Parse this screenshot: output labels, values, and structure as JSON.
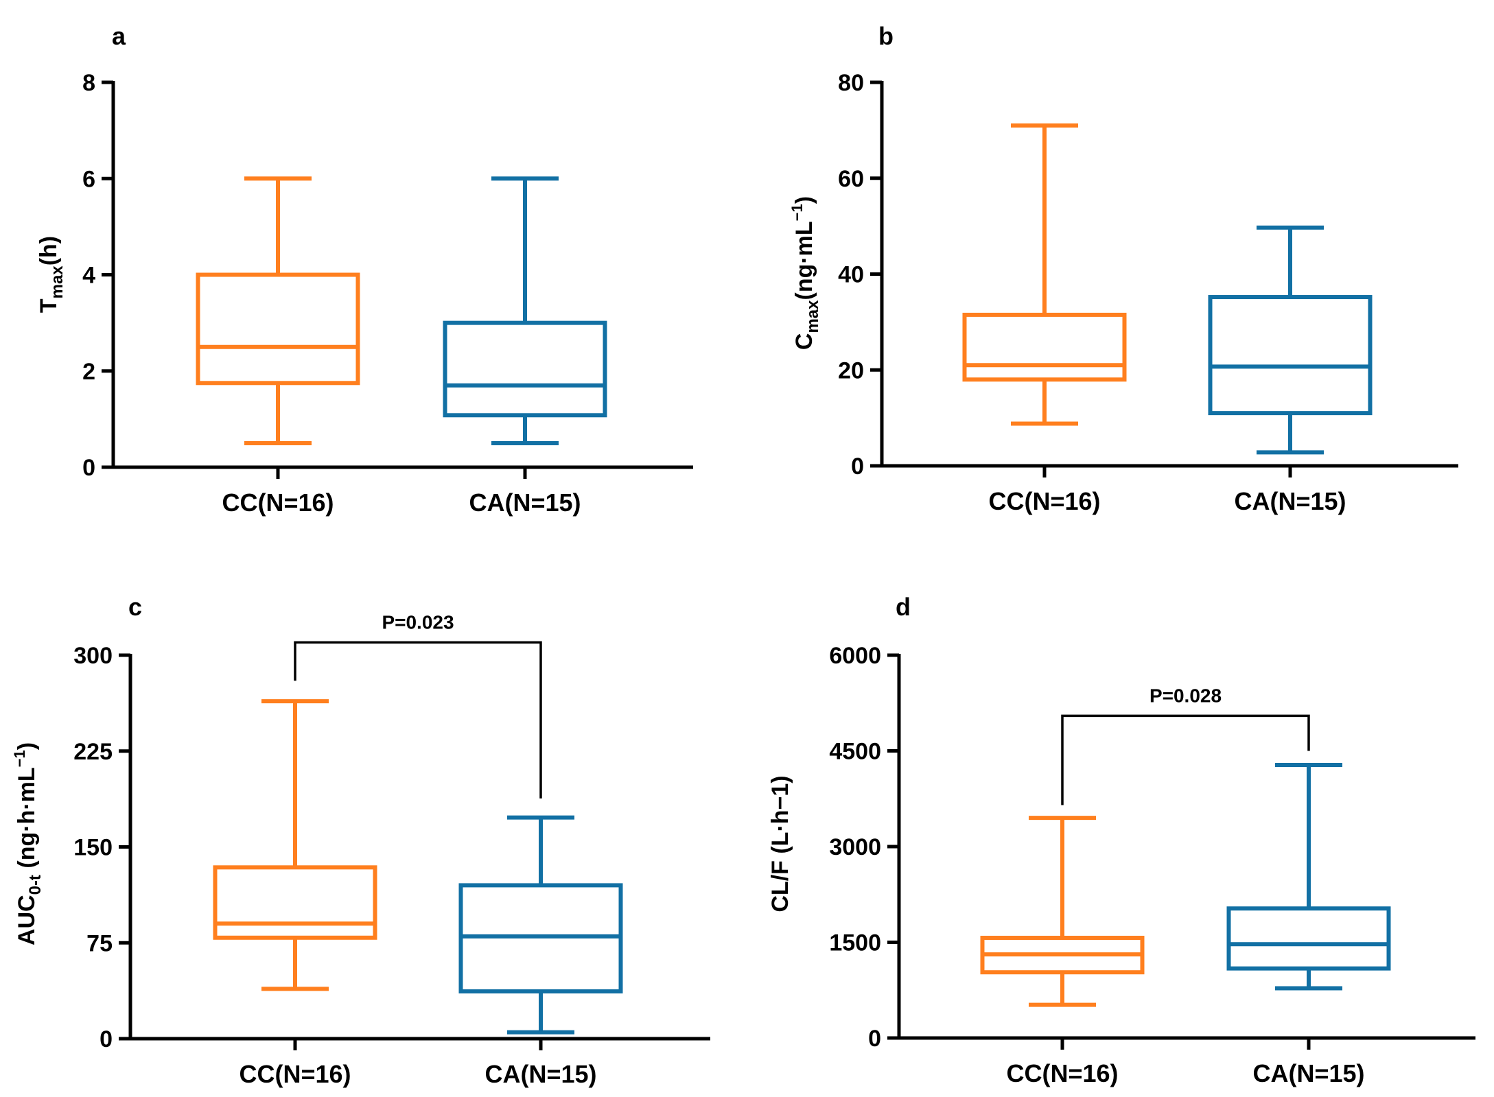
{
  "colors": {
    "CC": "#ff7f1e",
    "CA": "#1270a4"
  },
  "chart_data": [
    {
      "type": "box",
      "panel": "a",
      "ylabel_main": "T",
      "ylabel_sub": "max",
      "ylabel_unit": "(h)",
      "ylim": [
        0,
        8
      ],
      "yticks": [
        0,
        2,
        4,
        6,
        8
      ],
      "categories": [
        "CC(N=16)",
        "CA(N=15)"
      ],
      "boxes": [
        {
          "group": "CC",
          "min": 0.5,
          "q1": 1.75,
          "median": 2.5,
          "q3": 4.0,
          "max": 6.0
        },
        {
          "group": "CA",
          "min": 0.5,
          "q1": 1.08,
          "median": 1.7,
          "q3": 3.0,
          "max": 6.0
        }
      ],
      "significance": null
    },
    {
      "type": "box",
      "panel": "b",
      "ylabel_main": "C",
      "ylabel_sub": "max",
      "ylabel_unit": "(ng·mL",
      "ylabel_sup": "−1",
      "ylabel_end": ")",
      "ylim": [
        0,
        80
      ],
      "yticks": [
        0,
        20,
        40,
        60,
        80
      ],
      "categories": [
        "CC(N=16)",
        "CA(N=15)"
      ],
      "boxes": [
        {
          "group": "CC",
          "min": 8.8,
          "q1": 18.0,
          "median": 21.0,
          "q3": 31.5,
          "max": 71.0
        },
        {
          "group": "CA",
          "min": 2.8,
          "q1": 11.0,
          "median": 20.7,
          "q3": 35.2,
          "max": 49.7
        }
      ],
      "significance": null
    },
    {
      "type": "box",
      "panel": "c",
      "ylabel_main": "AUC",
      "ylabel_sub": "0-t",
      "ylabel_unit": " (ng·h·mL",
      "ylabel_sup": "−1",
      "ylabel_end": ")",
      "ylim": [
        0,
        300
      ],
      "yticks": [
        0,
        75,
        150,
        225,
        300
      ],
      "categories": [
        "CC(N=16)",
        "CA(N=15)"
      ],
      "boxes": [
        {
          "group": "CC",
          "min": 39,
          "q1": 79,
          "median": 90,
          "q3": 134,
          "max": 264
        },
        {
          "group": "CA",
          "min": 5,
          "q1": 37,
          "median": 80,
          "q3": 120,
          "max": 173
        }
      ],
      "significance": {
        "label": "P=0.023",
        "y": 310,
        "left_end": 280,
        "right_end": 188
      }
    },
    {
      "type": "box",
      "panel": "d",
      "ylabel_main": "CL/F (L·h−1)",
      "ylim": [
        0,
        6000
      ],
      "yticks": [
        0,
        1500,
        3000,
        4500,
        6000
      ],
      "categories": [
        "CC(N=16)",
        "CA(N=15)"
      ],
      "boxes": [
        {
          "group": "CC",
          "min": 520,
          "q1": 1030,
          "median": 1310,
          "q3": 1570,
          "max": 3450
        },
        {
          "group": "CA",
          "min": 780,
          "q1": 1090,
          "median": 1470,
          "q3": 2030,
          "max": 4280
        }
      ],
      "significance": {
        "label": "P=0.028",
        "y": 5050,
        "left_end": 3650,
        "right_end": 4500
      }
    }
  ]
}
